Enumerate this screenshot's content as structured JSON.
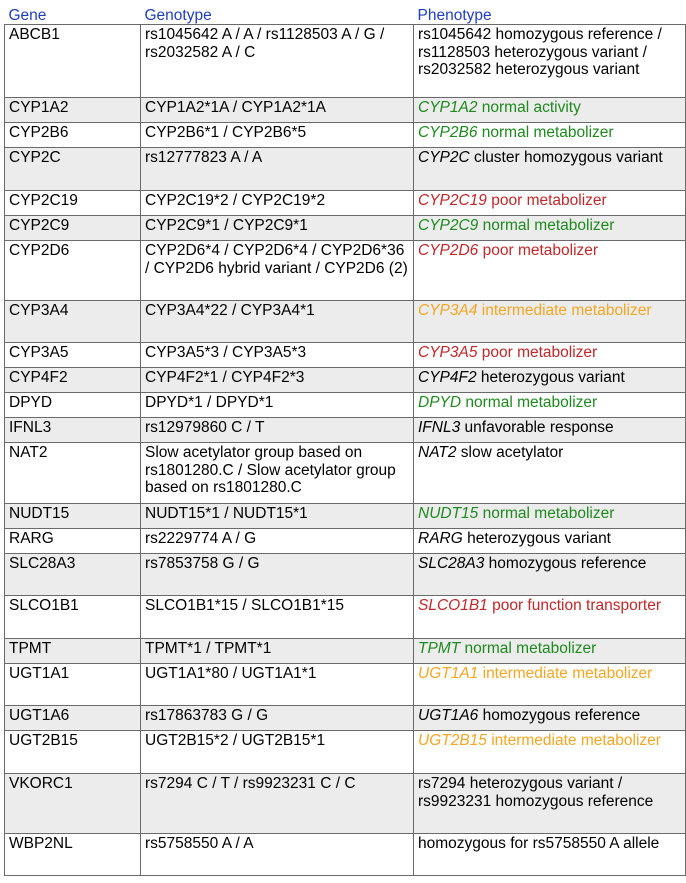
{
  "headers": {
    "gene": "Gene",
    "genotype": "Genotype",
    "phenotype": "Phenotype"
  },
  "colors": {
    "header": "#1f3fbf",
    "normal": "#1e8a1e",
    "poor": "#c0282a",
    "intermediate": "#f5a623",
    "neutral": "#000000",
    "stripe": "#ececec"
  },
  "rows": [
    {
      "gene": "ABCB1",
      "genotype": "rs1045642 A / A / rs1128503 A / G / rs2032582 A / C",
      "pheno_gene": "",
      "pheno_text": "rs1045642 homozygous reference / rs1128503 heterozygous variant / rs2032582 heterozygous variant",
      "status": "neutral",
      "h": 73
    },
    {
      "gene": "CYP1A2",
      "genotype": "CYP1A2*1A / CYP1A2*1A",
      "pheno_gene": "CYP1A2",
      "pheno_text": " normal activity",
      "status": "normal",
      "h": 25
    },
    {
      "gene": "CYP2B6",
      "genotype": "CYP2B6*1 / CYP2B6*5",
      "pheno_gene": "CYP2B6",
      "pheno_text": " normal metabolizer",
      "status": "normal",
      "h": 25
    },
    {
      "gene": "CYP2C",
      "genotype": "rs12777823 A / A",
      "pheno_gene": "CYP2C",
      "pheno_text": " cluster homozygous variant",
      "status": "neutral",
      "h": 43
    },
    {
      "gene": "CYP2C19",
      "genotype": "CYP2C19*2 / CYP2C19*2",
      "pheno_gene": "CYP2C19",
      "pheno_text": " poor metabolizer",
      "status": "poor",
      "h": 25
    },
    {
      "gene": "CYP2C9",
      "genotype": "CYP2C9*1 / CYP2C9*1",
      "pheno_gene": "CYP2C9",
      "pheno_text": " normal metabolizer",
      "status": "normal",
      "h": 25
    },
    {
      "gene": "CYP2D6",
      "genotype": "CYP2D6*4 / CYP2D6*4 / CYP2D6*36 / CYP2D6 hybrid variant / CYP2D6 (2)",
      "pheno_gene": "CYP2D6",
      "pheno_text": " poor metabolizer",
      "status": "poor",
      "h": 60
    },
    {
      "gene": "CYP3A4",
      "genotype": "CYP3A4*22 / CYP3A4*1",
      "pheno_gene": "CYP3A4",
      "pheno_text": " intermediate metabolizer",
      "status": "intermediate",
      "h": 42
    },
    {
      "gene": "CYP3A5",
      "genotype": "CYP3A5*3 / CYP3A5*3",
      "pheno_gene": "CYP3A5",
      "pheno_text": " poor metabolizer",
      "status": "poor",
      "h": 25
    },
    {
      "gene": "CYP4F2",
      "genotype": "CYP4F2*1 / CYP4F2*3",
      "pheno_gene": "CYP4F2",
      "pheno_text": " heterozygous variant",
      "status": "neutral",
      "h": 25
    },
    {
      "gene": "DPYD",
      "genotype": "DPYD*1 / DPYD*1",
      "pheno_gene": "DPYD",
      "pheno_text": " normal metabolizer",
      "status": "normal",
      "h": 25
    },
    {
      "gene": "IFNL3",
      "genotype": "rs12979860 C / T",
      "pheno_gene": "IFNL3",
      "pheno_text": " unfavorable response",
      "status": "neutral",
      "h": 25
    },
    {
      "gene": "NAT2",
      "genotype": "Slow acetylator group based on rs1801280.C / Slow acetylator group based on rs1801280.C",
      "pheno_gene": "NAT2",
      "pheno_text": " slow acetylator",
      "status": "neutral",
      "h": 61
    },
    {
      "gene": "NUDT15",
      "genotype": "NUDT15*1 / NUDT15*1",
      "pheno_gene": "NUDT15",
      "pheno_text": " normal metabolizer",
      "status": "normal",
      "h": 25
    },
    {
      "gene": "RARG",
      "genotype": "rs2229774 A / G",
      "pheno_gene": "RARG",
      "pheno_text": " heterozygous variant",
      "status": "neutral",
      "h": 25
    },
    {
      "gene": "SLC28A3",
      "genotype": "rs7853758 G / G",
      "pheno_gene": "SLC28A3",
      "pheno_text": " homozygous reference",
      "status": "neutral",
      "h": 42
    },
    {
      "gene": "SLCO1B1",
      "genotype": "SLCO1B1*15 / SLCO1B1*15",
      "pheno_gene": "SLCO1B1",
      "pheno_text": " poor function transporter",
      "status": "poor",
      "h": 43
    },
    {
      "gene": "TPMT",
      "genotype": "TPMT*1 / TPMT*1",
      "pheno_gene": "TPMT",
      "pheno_text": " normal metabolizer",
      "status": "normal",
      "h": 25
    },
    {
      "gene": "UGT1A1",
      "genotype": "UGT1A1*80 / UGT1A1*1",
      "pheno_gene": "UGT1A1",
      "pheno_text": " intermediate metabolizer",
      "status": "intermediate",
      "h": 42
    },
    {
      "gene": "UGT1A6",
      "genotype": "rs17863783 G / G",
      "pheno_gene": "UGT1A6",
      "pheno_text": " homozygous reference",
      "status": "neutral",
      "h": 25
    },
    {
      "gene": "UGT2B15",
      "genotype": "UGT2B15*2 / UGT2B15*1",
      "pheno_gene": "UGT2B15",
      "pheno_text": " intermediate metabolizer",
      "status": "intermediate",
      "h": 43
    },
    {
      "gene": "VKORC1",
      "genotype": "rs7294 C / T / rs9923231 C / C",
      "pheno_gene": "",
      "pheno_text": "rs7294 heterozygous variant / rs9923231 homozygous reference",
      "status": "neutral",
      "h": 60
    },
    {
      "gene": "WBP2NL",
      "genotype": "rs5758550 A / A",
      "pheno_gene": "",
      "pheno_text": "homozygous for rs5758550 A allele",
      "status": "neutral",
      "h": 42
    }
  ]
}
